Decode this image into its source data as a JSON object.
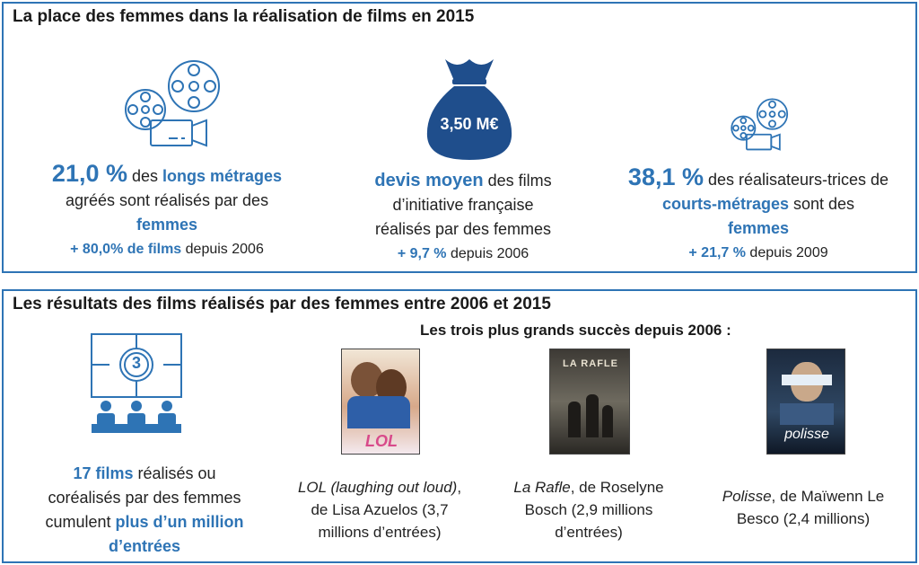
{
  "top": {
    "title": "La place des femmes dans la réalisation de films en 2015",
    "stat1": {
      "value": "21,0 %",
      "t1": " des ",
      "highlight1": "longs métrages",
      "t2": "agréés sont réalisés par des",
      "highlight2": "femmes",
      "change": "+ 80,0% de films",
      "since": " depuis 2006"
    },
    "stat2": {
      "badge": "3,50 M€",
      "highlight1": "devis moyen",
      "t1": " des films",
      "t2": "d’initiative française",
      "t3": "réalisés par des femmes",
      "change": "+ 9,7 %",
      "since": " depuis 2006"
    },
    "stat3": {
      "value": "38,1 %",
      "t1": " des réalisateurs-trices de",
      "highlight1": "courts-métrages",
      "t2": " sont des",
      "highlight2": "femmes",
      "change": "+ 21,7 %",
      "since": " depuis 2009"
    }
  },
  "bottom": {
    "title": "Les résultats des films réalisés par des femmes entre 2006 et 2015",
    "countdown_number": "3",
    "summary": {
      "highlight1": "17 films",
      "t1": " réalisés ou",
      "t2": "coréalisés par des femmes",
      "t3": "cumulent ",
      "highlight2": "plus d’un million",
      "highlight3": "d’entrées"
    },
    "subtitle": "Les trois plus grands succès depuis 2006 :",
    "films": [
      {
        "title": "LOL (laughing out loud)",
        "rest1": ",",
        "line2": "de Lisa Azuelos   (3,7",
        "line3": "millions d’entrées)",
        "poster_text": "LOL"
      },
      {
        "title": "La Rafle",
        "rest1": ", de Roselyne",
        "line2": "Bosch (2,9 millions",
        "line3": "d’entrées)",
        "poster_text": "LA RAFLE"
      },
      {
        "title": "Polisse",
        "rest1": ", de Maïwenn Le",
        "line2": "Besco (2,4 millions)",
        "line3": "",
        "poster_text": "polisse"
      }
    ]
  }
}
